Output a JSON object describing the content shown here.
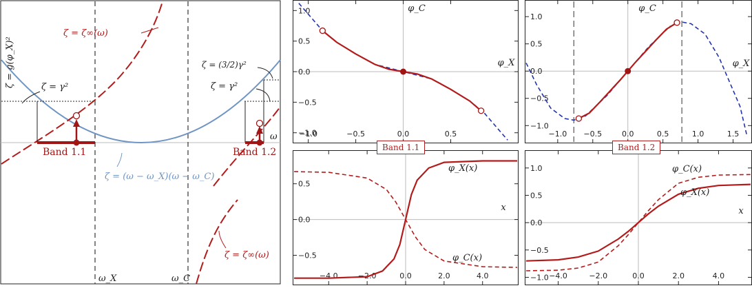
{
  "chart_data": [
    {
      "id": "dispersion",
      "type": "line",
      "xlabel": "ω",
      "ylabel": "ζ = g(φ_X)²",
      "x_ticks": [
        {
          "key": "omega_x",
          "label": "ω_X",
          "x": 2.0
        },
        {
          "key": "omega_c",
          "label": "ω_C",
          "x": 4.0
        }
      ],
      "colors": {
        "dispersion": "#6f95c4",
        "zeta_inf": "#b31b1b",
        "band": "#b31b1b"
      },
      "series": [
        {
          "key": "parabola",
          "style": "solid",
          "color": "#6f95c4"
        },
        {
          "key": "zeta_inf",
          "style": "long-dash",
          "color": "#b31b1b"
        }
      ],
      "annotations": {
        "zeta_inf_top": "ζ = ζ∞(ω)",
        "zeta_inf_bottom": "ζ = ζ∞(ω)",
        "gamma_left": "ζ = γ²",
        "gamma_right": "ζ = γ²",
        "gamma_right_32": "ζ = (3/2)γ²",
        "parabola_label": "ζ = (ω − ω_X)(ω − ω_C)"
      },
      "bands": [
        {
          "label": "Band 1.1"
        },
        {
          "label": "Band 1.2"
        }
      ]
    },
    {
      "id": "band11_phase",
      "type": "line",
      "xlabel": "φ_X",
      "ylabel": "φ_C",
      "xlim": [
        -1.15,
        1.2
      ],
      "ylim": [
        -1.15,
        1.15
      ],
      "x_ticks": [
        -1.0,
        -0.5,
        0.0,
        0.5
      ],
      "x_tick_labels": [
        "−1.0",
        "−0.5",
        "0.0",
        "0.5"
      ],
      "y_ticks": [
        -1.0,
        -0.5,
        0.0,
        0.5,
        1.0
      ],
      "y_tick_labels": [
        "−1.0",
        "−0.5",
        "0.0",
        "0.5",
        "1.0"
      ],
      "series": [
        {
          "name": "",
          "style": "dashed",
          "color": "#2233aa",
          "x": [
            -1.1,
            -0.95,
            -0.85,
            -0.7,
            -0.5,
            -0.3,
            0.0,
            0.3,
            0.5,
            0.7,
            0.85,
            0.95,
            1.05,
            1.1
          ],
          "y": [
            1.12,
            0.85,
            0.67,
            0.48,
            0.29,
            0.12,
            0.0,
            -0.12,
            -0.29,
            -0.48,
            -0.67,
            -0.85,
            -1.03,
            -1.12
          ]
        },
        {
          "name": "",
          "style": "solid",
          "color": "#b31b1b",
          "x": [
            -0.85,
            -0.7,
            -0.5,
            -0.3,
            -0.15,
            0.0,
            0.15,
            0.3,
            0.5,
            0.7,
            0.82
          ],
          "y": [
            0.67,
            0.48,
            0.29,
            0.12,
            0.04,
            0.0,
            -0.04,
            -0.12,
            -0.29,
            -0.48,
            -0.64
          ]
        }
      ],
      "points": [
        {
          "x": -0.85,
          "y": 0.67,
          "kind": "open"
        },
        {
          "x": 0.82,
          "y": -0.64,
          "kind": "open"
        },
        {
          "x": 0.0,
          "y": 0.0,
          "kind": "filled"
        }
      ],
      "band_label": "Band 1.1"
    },
    {
      "id": "band12_phase",
      "type": "line",
      "xlabel": "φ_X",
      "ylabel": "φ_C",
      "xlim": [
        -1.45,
        1.75
      ],
      "ylim": [
        -1.3,
        1.28
      ],
      "x_ticks": [
        -1.0,
        -0.5,
        0.0,
        0.5,
        1.0,
        1.5
      ],
      "x_tick_labels": [
        "−1.0",
        "−0.5",
        "0.0",
        "0.5",
        "1.0",
        "1.5"
      ],
      "y_ticks": [
        -1.0,
        -0.5,
        0.0,
        0.5,
        1.0
      ],
      "y_tick_labels": [
        "−1.0",
        "−0.5",
        "0.0",
        "0.5",
        "1.0"
      ],
      "vlines": [
        -0.77,
        0.77
      ],
      "series": [
        {
          "name": "",
          "style": "dashed",
          "color": "#2233aa",
          "x": [
            -1.45,
            -1.3,
            -1.1,
            -0.9,
            -0.77,
            -0.6,
            -0.3,
            0.0,
            0.3,
            0.6,
            0.77,
            0.9,
            1.1,
            1.3,
            1.45,
            1.6,
            1.7
          ],
          "y": [
            0.15,
            -0.25,
            -0.68,
            -0.87,
            -0.9,
            -0.82,
            -0.45,
            0.0,
            0.45,
            0.82,
            0.9,
            0.87,
            0.68,
            0.25,
            -0.2,
            -0.65,
            -1.2
          ]
        },
        {
          "name": "",
          "style": "solid",
          "color": "#b31b1b",
          "x": [
            -0.7,
            -0.55,
            -0.4,
            -0.25,
            -0.1,
            0.0,
            0.1,
            0.25,
            0.4,
            0.55,
            0.7
          ],
          "y": [
            -0.87,
            -0.77,
            -0.57,
            -0.36,
            -0.15,
            0.0,
            0.15,
            0.36,
            0.57,
            0.77,
            0.89
          ]
        }
      ],
      "points": [
        {
          "x": -0.7,
          "y": -0.87,
          "kind": "open"
        },
        {
          "x": 0.7,
          "y": 0.89,
          "kind": "open"
        },
        {
          "x": 0.0,
          "y": 0.0,
          "kind": "filled"
        }
      ],
      "band_label": "Band 1.2"
    },
    {
      "id": "band11_profile",
      "type": "line",
      "xlabel": "x",
      "xlim": [
        -5.8,
        5.8
      ],
      "ylim": [
        -0.9,
        0.95
      ],
      "x_ticks": [
        -4.0,
        -2.0,
        0.0,
        2.0,
        4.0
      ],
      "x_tick_labels": [
        "−4.0",
        "−2.0",
        "0.0",
        "2.0",
        "4.0"
      ],
      "y_ticks": [
        -0.5,
        0.0,
        0.5
      ],
      "y_tick_labels": [
        "−0.5",
        "0.0",
        "0.5"
      ],
      "series": [
        {
          "name": "φ_X(x)",
          "style": "solid",
          "color": "#b31b1b",
          "x": [
            -5.8,
            -4.0,
            -2.0,
            -1.2,
            -0.6,
            -0.3,
            0.0,
            0.3,
            0.6,
            1.2,
            2.0,
            4.0,
            5.8
          ],
          "y": [
            -0.82,
            -0.82,
            -0.8,
            -0.72,
            -0.55,
            -0.35,
            0.0,
            0.35,
            0.55,
            0.72,
            0.8,
            0.82,
            0.82
          ]
        },
        {
          "name": "φ_C(x)",
          "style": "dashed",
          "color": "#b31b1b",
          "x": [
            -5.8,
            -4.0,
            -2.0,
            -1.0,
            -0.5,
            0.0,
            0.5,
            1.0,
            2.0,
            4.0,
            5.8
          ],
          "y": [
            0.67,
            0.66,
            0.58,
            0.42,
            0.24,
            0.0,
            -0.24,
            -0.42,
            -0.58,
            -0.66,
            -0.67
          ]
        }
      ]
    },
    {
      "id": "band12_profile",
      "type": "line",
      "xlabel": "x",
      "xlim": [
        -5.6,
        5.6
      ],
      "ylim": [
        -1.12,
        1.3
      ],
      "x_ticks": [
        -4.0,
        -2.0,
        0.0,
        2.0,
        4.0
      ],
      "x_tick_labels": [
        "−4.0",
        "−2.0",
        "0.0",
        "2.0",
        "4.0"
      ],
      "y_ticks": [
        -1.0,
        -0.5,
        0.0,
        0.5,
        1.0
      ],
      "y_tick_labels": [
        "−1.0",
        "−0.5",
        "0.0",
        "0.5",
        "1.0"
      ],
      "series": [
        {
          "name": "φ_C(x)",
          "style": "dashed",
          "color": "#b31b1b",
          "x": [
            -5.6,
            -4.0,
            -3.0,
            -2.0,
            -1.0,
            -0.5,
            0.0,
            0.5,
            1.0,
            2.0,
            3.0,
            4.0,
            5.6
          ],
          "y": [
            -0.88,
            -0.87,
            -0.83,
            -0.72,
            -0.42,
            -0.22,
            0.0,
            0.22,
            0.42,
            0.72,
            0.83,
            0.87,
            0.88
          ]
        },
        {
          "name": "φ_X(x)",
          "style": "solid",
          "color": "#b31b1b",
          "x": [
            -5.6,
            -4.0,
            -3.0,
            -2.0,
            -1.0,
            -0.5,
            0.0,
            0.5,
            1.0,
            2.0,
            3.0,
            4.0,
            5.6
          ],
          "y": [
            -0.7,
            -0.68,
            -0.63,
            -0.52,
            -0.3,
            -0.16,
            0.0,
            0.16,
            0.3,
            0.52,
            0.63,
            0.68,
            0.7
          ]
        }
      ]
    }
  ],
  "badges": {
    "band11": "Band 1.1",
    "band12": "Band 1.2"
  }
}
